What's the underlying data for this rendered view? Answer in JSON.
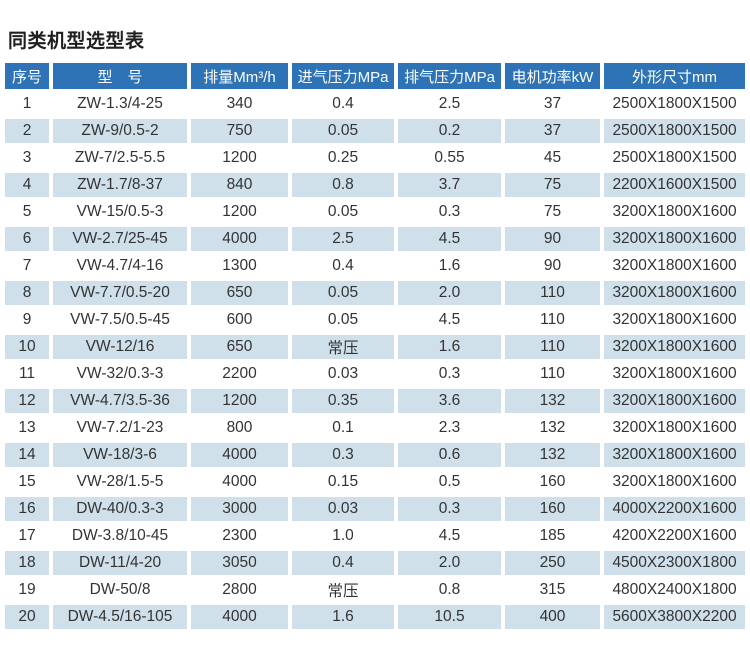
{
  "title": "同类机型选型表",
  "table": {
    "column_keys": [
      "index",
      "model",
      "displacement",
      "intake-pressure",
      "exhaust-pressure",
      "motor-power",
      "dimensions"
    ],
    "headers": [
      "序号",
      "型　号",
      "排量Mm³/h",
      "进气压力MPa",
      "排气压力MPa",
      "电机功率kW",
      "外形尺寸mm"
    ],
    "rows": [
      [
        "1",
        "ZW-1.3/4-25",
        "340",
        "0.4",
        "2.5",
        "37",
        "2500X1800X1500"
      ],
      [
        "2",
        "ZW-9/0.5-2",
        "750",
        "0.05",
        "0.2",
        "37",
        "2500X1800X1500"
      ],
      [
        "3",
        "ZW-7/2.5-5.5",
        "1200",
        "0.25",
        "0.55",
        "45",
        "2500X1800X1500"
      ],
      [
        "4",
        "ZW-1.7/8-37",
        "840",
        "0.8",
        "3.7",
        "75",
        "2200X1600X1500"
      ],
      [
        "5",
        "VW-15/0.5-3",
        "1200",
        "0.05",
        "0.3",
        "75",
        "3200X1800X1600"
      ],
      [
        "6",
        "VW-2.7/25-45",
        "4000",
        "2.5",
        "4.5",
        "90",
        "3200X1800X1600"
      ],
      [
        "7",
        "VW-4.7/4-16",
        "1300",
        "0.4",
        "1.6",
        "90",
        "3200X1800X1600"
      ],
      [
        "8",
        "VW-7.7/0.5-20",
        "650",
        "0.05",
        "2.0",
        "110",
        "3200X1800X1600"
      ],
      [
        "9",
        "VW-7.5/0.5-45",
        "600",
        "0.05",
        "4.5",
        "110",
        "3200X1800X1600"
      ],
      [
        "10",
        "VW-12/16",
        "650",
        "常压",
        "1.6",
        "110",
        "3200X1800X1600"
      ],
      [
        "11",
        "VW-32/0.3-3",
        "2200",
        "0.03",
        "0.3",
        "110",
        "3200X1800X1600"
      ],
      [
        "12",
        "VW-4.7/3.5-36",
        "1200",
        "0.35",
        "3.6",
        "132",
        "3200X1800X1600"
      ],
      [
        "13",
        "VW-7.2/1-23",
        "800",
        "0.1",
        "2.3",
        "132",
        "3200X1800X1600"
      ],
      [
        "14",
        "VW-18/3-6",
        "4000",
        "0.3",
        "0.6",
        "132",
        "3200X1800X1600"
      ],
      [
        "15",
        "VW-28/1.5-5",
        "4000",
        "0.15",
        "0.5",
        "160",
        "3200X1800X1600"
      ],
      [
        "16",
        "DW-40/0.3-3",
        "3000",
        "0.03",
        "0.3",
        "160",
        "4000X2200X1600"
      ],
      [
        "17",
        "DW-3.8/10-45",
        "2300",
        "1.0",
        "4.5",
        "185",
        "4200X2200X1600"
      ],
      [
        "18",
        "DW-11/4-20",
        "3050",
        "0.4",
        "2.0",
        "250",
        "4500X2300X1800"
      ],
      [
        "19",
        "DW-50/8",
        "2800",
        "常压",
        "0.8",
        "315",
        "4800X2400X1800"
      ],
      [
        "20",
        "DW-4.5/16-105",
        "4000",
        "1.6",
        "10.5",
        "400",
        "5600X3800X2200"
      ]
    ]
  },
  "colors": {
    "header_bg": "#2d73b5",
    "header_text": "#ffffff",
    "row_alt_bg": "#cfe0eb",
    "row_bg": "#ffffff",
    "body_text": "#333333",
    "title_text": "#1f1f1f"
  }
}
